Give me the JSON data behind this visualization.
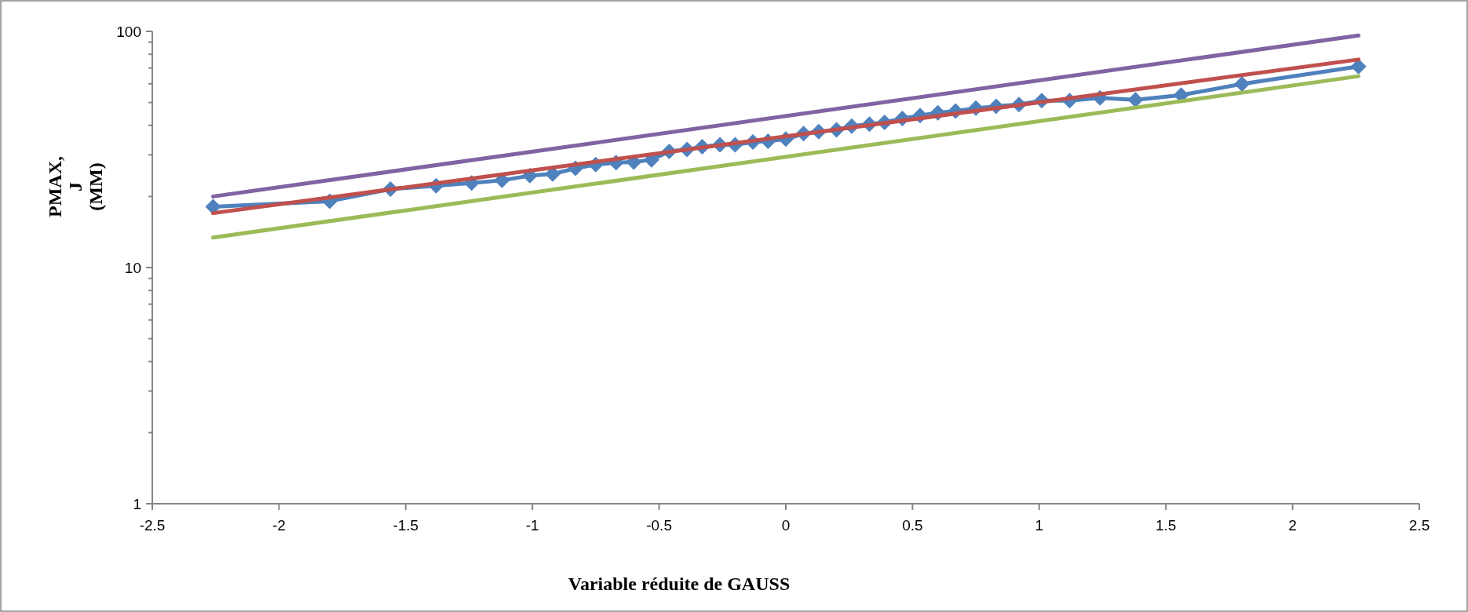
{
  "chart_data": {
    "type": "line",
    "xlabel": "Variable réduite de GAUSS",
    "ylabel": "PMAX, J (MM)",
    "log": "y",
    "grid": false,
    "xlim": [
      -2.5,
      2.5
    ],
    "xticks": [
      -2.5,
      -2,
      -1.5,
      -1,
      -0.5,
      0,
      0.5,
      1,
      1.5,
      2,
      2.5
    ],
    "ylim": [
      1,
      100
    ],
    "yticks": [
      1,
      {
        "value": 2,
        "label": null
      },
      {
        "value": 3,
        "label": null
      },
      {
        "value": 4,
        "label": null
      },
      {
        "value": 5,
        "label": null
      },
      {
        "value": 6,
        "label": null
      },
      {
        "value": 7,
        "label": null
      },
      {
        "value": 8,
        "label": null
      },
      {
        "value": 9,
        "label": null
      },
      10,
      {
        "value": 20,
        "label": null
      },
      {
        "value": 30,
        "label": null
      },
      {
        "value": 40,
        "label": null
      },
      {
        "value": 50,
        "label": null
      },
      {
        "value": 60,
        "label": null
      },
      {
        "value": 70,
        "label": null
      },
      {
        "value": 80,
        "label": null
      },
      {
        "value": 90,
        "label": null
      },
      100
    ],
    "series": [
      {
        "color": "#4f81bd",
        "marker": "diamond",
        "x": [
          -2.26,
          -1.8,
          -1.56,
          -1.38,
          -1.24,
          -1.12,
          -1.01,
          -0.92,
          -0.83,
          -0.75,
          -0.67,
          -0.6,
          -0.53,
          -0.46,
          -0.39,
          -0.33,
          -0.26,
          -0.2,
          -0.13,
          -0.07,
          0,
          0.07,
          0.13,
          0.2,
          0.26,
          0.33,
          0.39,
          0.46,
          0.53,
          0.6,
          0.67,
          0.75,
          0.83,
          0.92,
          1.01,
          1.12,
          1.24,
          1.38,
          1.56,
          1.8,
          2.26
        ],
        "values": [
          18.1,
          19.1,
          21.5,
          22.2,
          22.8,
          23.4,
          24.5,
          24.9,
          26.3,
          27.3,
          27.8,
          28,
          28.6,
          31,
          31.6,
          32.5,
          33.1,
          33.1,
          34,
          34.3,
          35,
          36.9,
          37.6,
          38.3,
          39.7,
          40.5,
          41.2,
          42.8,
          44,
          45.2,
          46,
          47.3,
          48.2,
          49,
          50.9,
          50.9,
          52.3,
          51.3,
          53.7,
          59.9,
          71
        ]
      },
      {
        "color": "#8064a2",
        "marker": "none",
        "x": [
          -2.26,
          2.26
        ],
        "values": [
          20,
          96
        ]
      },
      {
        "color": "#c0504d",
        "marker": "none",
        "x": [
          -2.26,
          2.26
        ],
        "values": [
          17,
          76
        ]
      },
      {
        "color": "#9bbb59",
        "marker": "none",
        "x": [
          -2.26,
          2.26
        ],
        "values": [
          13.4,
          64.6
        ]
      }
    ]
  }
}
